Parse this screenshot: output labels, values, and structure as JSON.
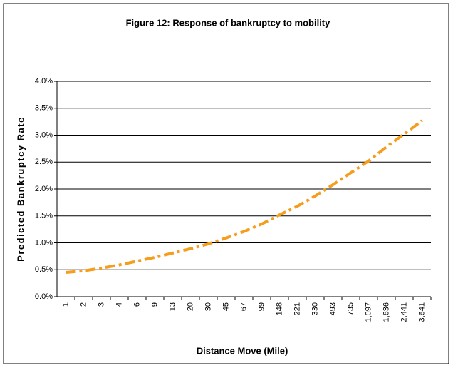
{
  "chart_data": {
    "type": "line",
    "title": "Figure 12: Response of bankruptcy to mobility",
    "x_label": "Distance Move (Mile)",
    "y_label": "Predicted Bankruptcy Rate",
    "categories": [
      "1",
      "2",
      "3",
      "4",
      "6",
      "9",
      "13",
      "20",
      "30",
      "45",
      "67",
      "99",
      "148",
      "221",
      "330",
      "493",
      "735",
      "1,097",
      "1,636",
      "2,441",
      "3,641"
    ],
    "series": [
      {
        "name": "Predicted Bankruptcy Rate",
        "color": "#f59d1c",
        "values": [
          0.45,
          0.48,
          0.53,
          0.59,
          0.66,
          0.73,
          0.81,
          0.89,
          0.98,
          1.09,
          1.21,
          1.35,
          1.52,
          1.68,
          1.87,
          2.08,
          2.3,
          2.52,
          2.78,
          3.02,
          3.27
        ]
      }
    ],
    "ylim": [
      0,
      4
    ],
    "yticks": [
      {
        "value": 0,
        "label": "0.0%"
      },
      {
        "value": 0.5,
        "label": "0.5%"
      },
      {
        "value": 1,
        "label": "1.0%"
      },
      {
        "value": 1.5,
        "label": "1.5%"
      },
      {
        "value": 2,
        "label": "2.0%"
      },
      {
        "value": 2.5,
        "label": "2.5%"
      },
      {
        "value": 3,
        "label": "3.0%"
      },
      {
        "value": 3.5,
        "label": "3.5%"
      },
      {
        "value": 4,
        "label": "4.0%"
      }
    ],
    "grid": true
  }
}
